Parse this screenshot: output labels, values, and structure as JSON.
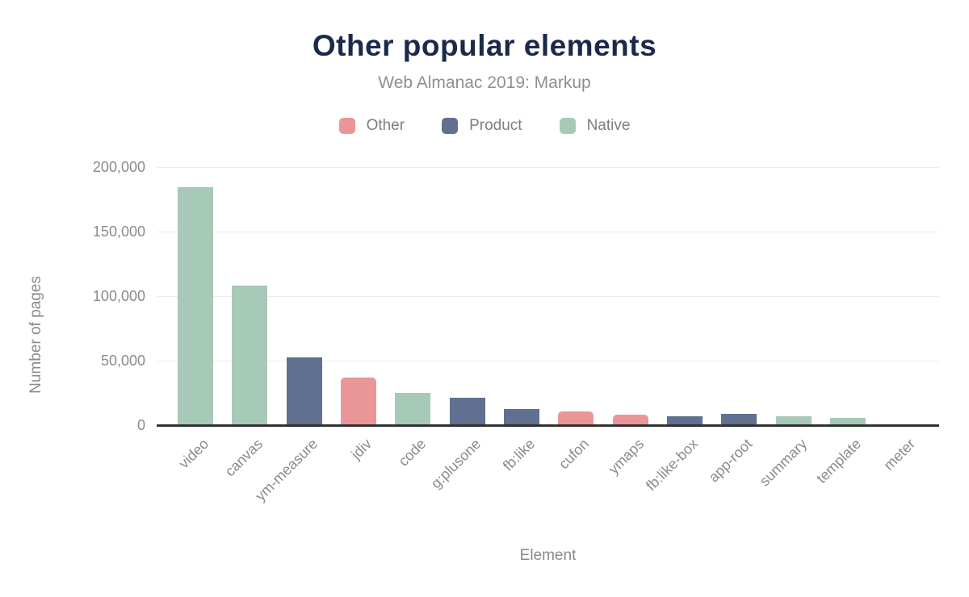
{
  "chart_data": {
    "type": "bar",
    "title": "Other popular elements",
    "subtitle": "Web Almanac 2019: Markup",
    "xlabel": "Element",
    "ylabel": "Number of pages",
    "categories": [
      "video",
      "canvas",
      "ym-measure",
      "jdiv",
      "code",
      "g:plusone",
      "fb:like",
      "cufon",
      "ymaps",
      "fb:like-box",
      "app-root",
      "summary",
      "template",
      "meter"
    ],
    "values": [
      184149,
      108355,
      52416,
      37119,
      25075,
      21098,
      12773,
      10523,
      8303,
      6972,
      8468,
      6578,
      5913,
      0
    ],
    "groups": [
      "Native",
      "Native",
      "Product",
      "Other",
      "Native",
      "Product",
      "Product",
      "Other",
      "Other",
      "Product",
      "Product",
      "Native",
      "Native",
      "Native"
    ],
    "legend": [
      {
        "label": "Other",
        "color": "#ea9698"
      },
      {
        "label": "Product",
        "color": "#5f7090"
      },
      {
        "label": "Native",
        "color": "#a7c9b7"
      }
    ],
    "legend_position": "top",
    "y_ticks": [
      "200,000",
      "150,000",
      "100,000",
      "50,000",
      "0"
    ],
    "ylim": [
      0,
      200000
    ],
    "grid": true,
    "colors": {
      "title": "#1b2a4a",
      "subtitle": "#8f8f8f",
      "axis_text": "#8a8a8a",
      "gridline": "#ececec",
      "axis_line": "#313131",
      "background": "#ffffff"
    }
  }
}
